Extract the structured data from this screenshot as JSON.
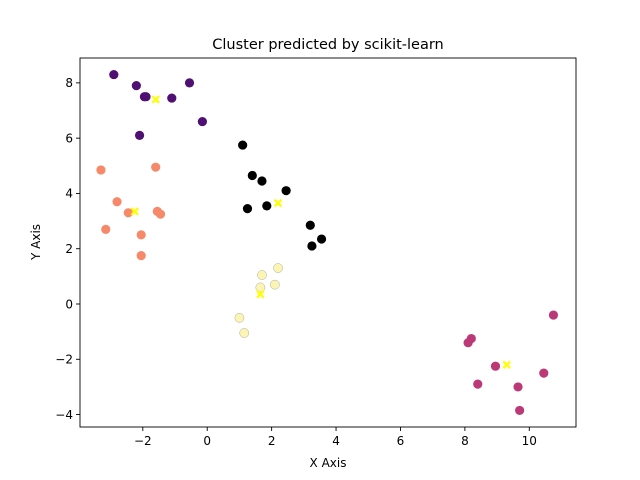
{
  "chart_data": {
    "type": "scatter",
    "title": "Cluster predicted by scikit-learn",
    "xlabel": "X Axis",
    "ylabel": "Y Axis",
    "xlim": [
      -3.95,
      11.45
    ],
    "ylim": [
      -4.45,
      8.9
    ],
    "xticks": [
      -2,
      0,
      2,
      4,
      6,
      8,
      10
    ],
    "yticks": [
      -4,
      -2,
      0,
      2,
      4,
      6,
      8
    ],
    "grid": false,
    "legend": "none",
    "clusters": [
      {
        "color": "#4f0f73",
        "points": [
          [
            -2.9,
            8.3
          ],
          [
            -2.2,
            7.9
          ],
          [
            -1.95,
            7.5
          ],
          [
            -1.9,
            7.5
          ],
          [
            -1.1,
            7.45
          ],
          [
            -0.55,
            8.0
          ],
          [
            -2.1,
            6.1
          ],
          [
            -0.15,
            6.6
          ]
        ],
        "centroid": [
          -1.6,
          7.4
        ]
      },
      {
        "color": "#f6896a",
        "points": [
          [
            -3.3,
            4.85
          ],
          [
            -1.6,
            4.95
          ],
          [
            -2.8,
            3.7
          ],
          [
            -2.45,
            3.3
          ],
          [
            -1.55,
            3.35
          ],
          [
            -1.45,
            3.25
          ],
          [
            -3.15,
            2.7
          ],
          [
            -2.05,
            2.5
          ],
          [
            -2.05,
            1.75
          ]
        ],
        "centroid": [
          -2.25,
          3.35
        ]
      },
      {
        "color": "#000000",
        "points": [
          [
            1.1,
            5.75
          ],
          [
            1.4,
            4.65
          ],
          [
            1.7,
            4.45
          ],
          [
            2.45,
            4.1
          ],
          [
            1.25,
            3.45
          ],
          [
            1.85,
            3.55
          ],
          [
            3.2,
            2.85
          ],
          [
            3.55,
            2.35
          ],
          [
            3.25,
            2.1
          ]
        ],
        "centroid": [
          2.2,
          3.65
        ]
      },
      {
        "color": "#fbf4b3",
        "points": [
          [
            1.7,
            1.05
          ],
          [
            2.2,
            1.3
          ],
          [
            1.65,
            0.6
          ],
          [
            2.1,
            0.7
          ],
          [
            1.0,
            -0.5
          ],
          [
            1.15,
            -1.05
          ]
        ],
        "centroid": [
          1.65,
          0.35
        ]
      },
      {
        "color": "#bb3977",
        "points": [
          [
            8.2,
            -1.25
          ],
          [
            8.1,
            -1.4
          ],
          [
            8.95,
            -2.25
          ],
          [
            8.4,
            -2.9
          ],
          [
            10.75,
            -0.4
          ],
          [
            10.45,
            -2.5
          ],
          [
            9.65,
            -3.0
          ],
          [
            9.7,
            -3.85
          ]
        ],
        "centroid": [
          9.3,
          -2.2
        ]
      }
    ],
    "centroid_color": "#ffff00"
  }
}
